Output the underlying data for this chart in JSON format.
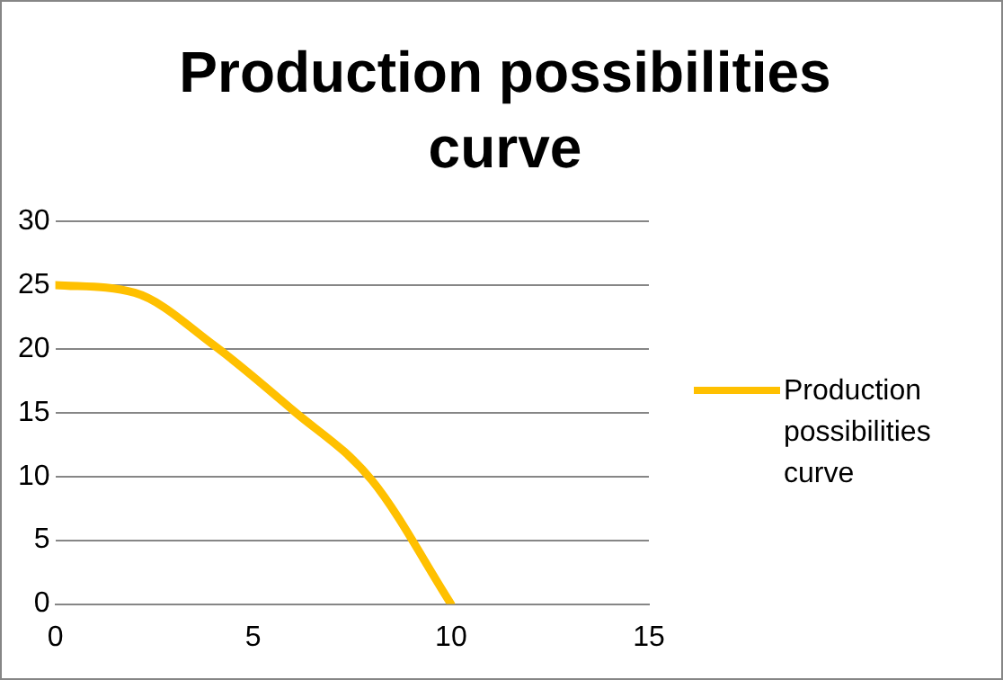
{
  "chart_data": {
    "type": "line",
    "title": "Production possibilities curve",
    "x": [
      0,
      2,
      4,
      6,
      8,
      10
    ],
    "series": [
      {
        "name": "Production possibilities curve",
        "color": "#ffc000",
        "values": [
          25,
          24.4,
          20.3,
          15.2,
          9.7,
          0
        ]
      }
    ],
    "xlim": [
      0,
      15
    ],
    "xticks": [
      0,
      5,
      10,
      15
    ],
    "ylim": [
      0,
      30
    ],
    "yticks": [
      0,
      5,
      10,
      15,
      20,
      25,
      30
    ],
    "grid": "y",
    "legend": "right",
    "marker": "none",
    "line_style": "solid"
  }
}
